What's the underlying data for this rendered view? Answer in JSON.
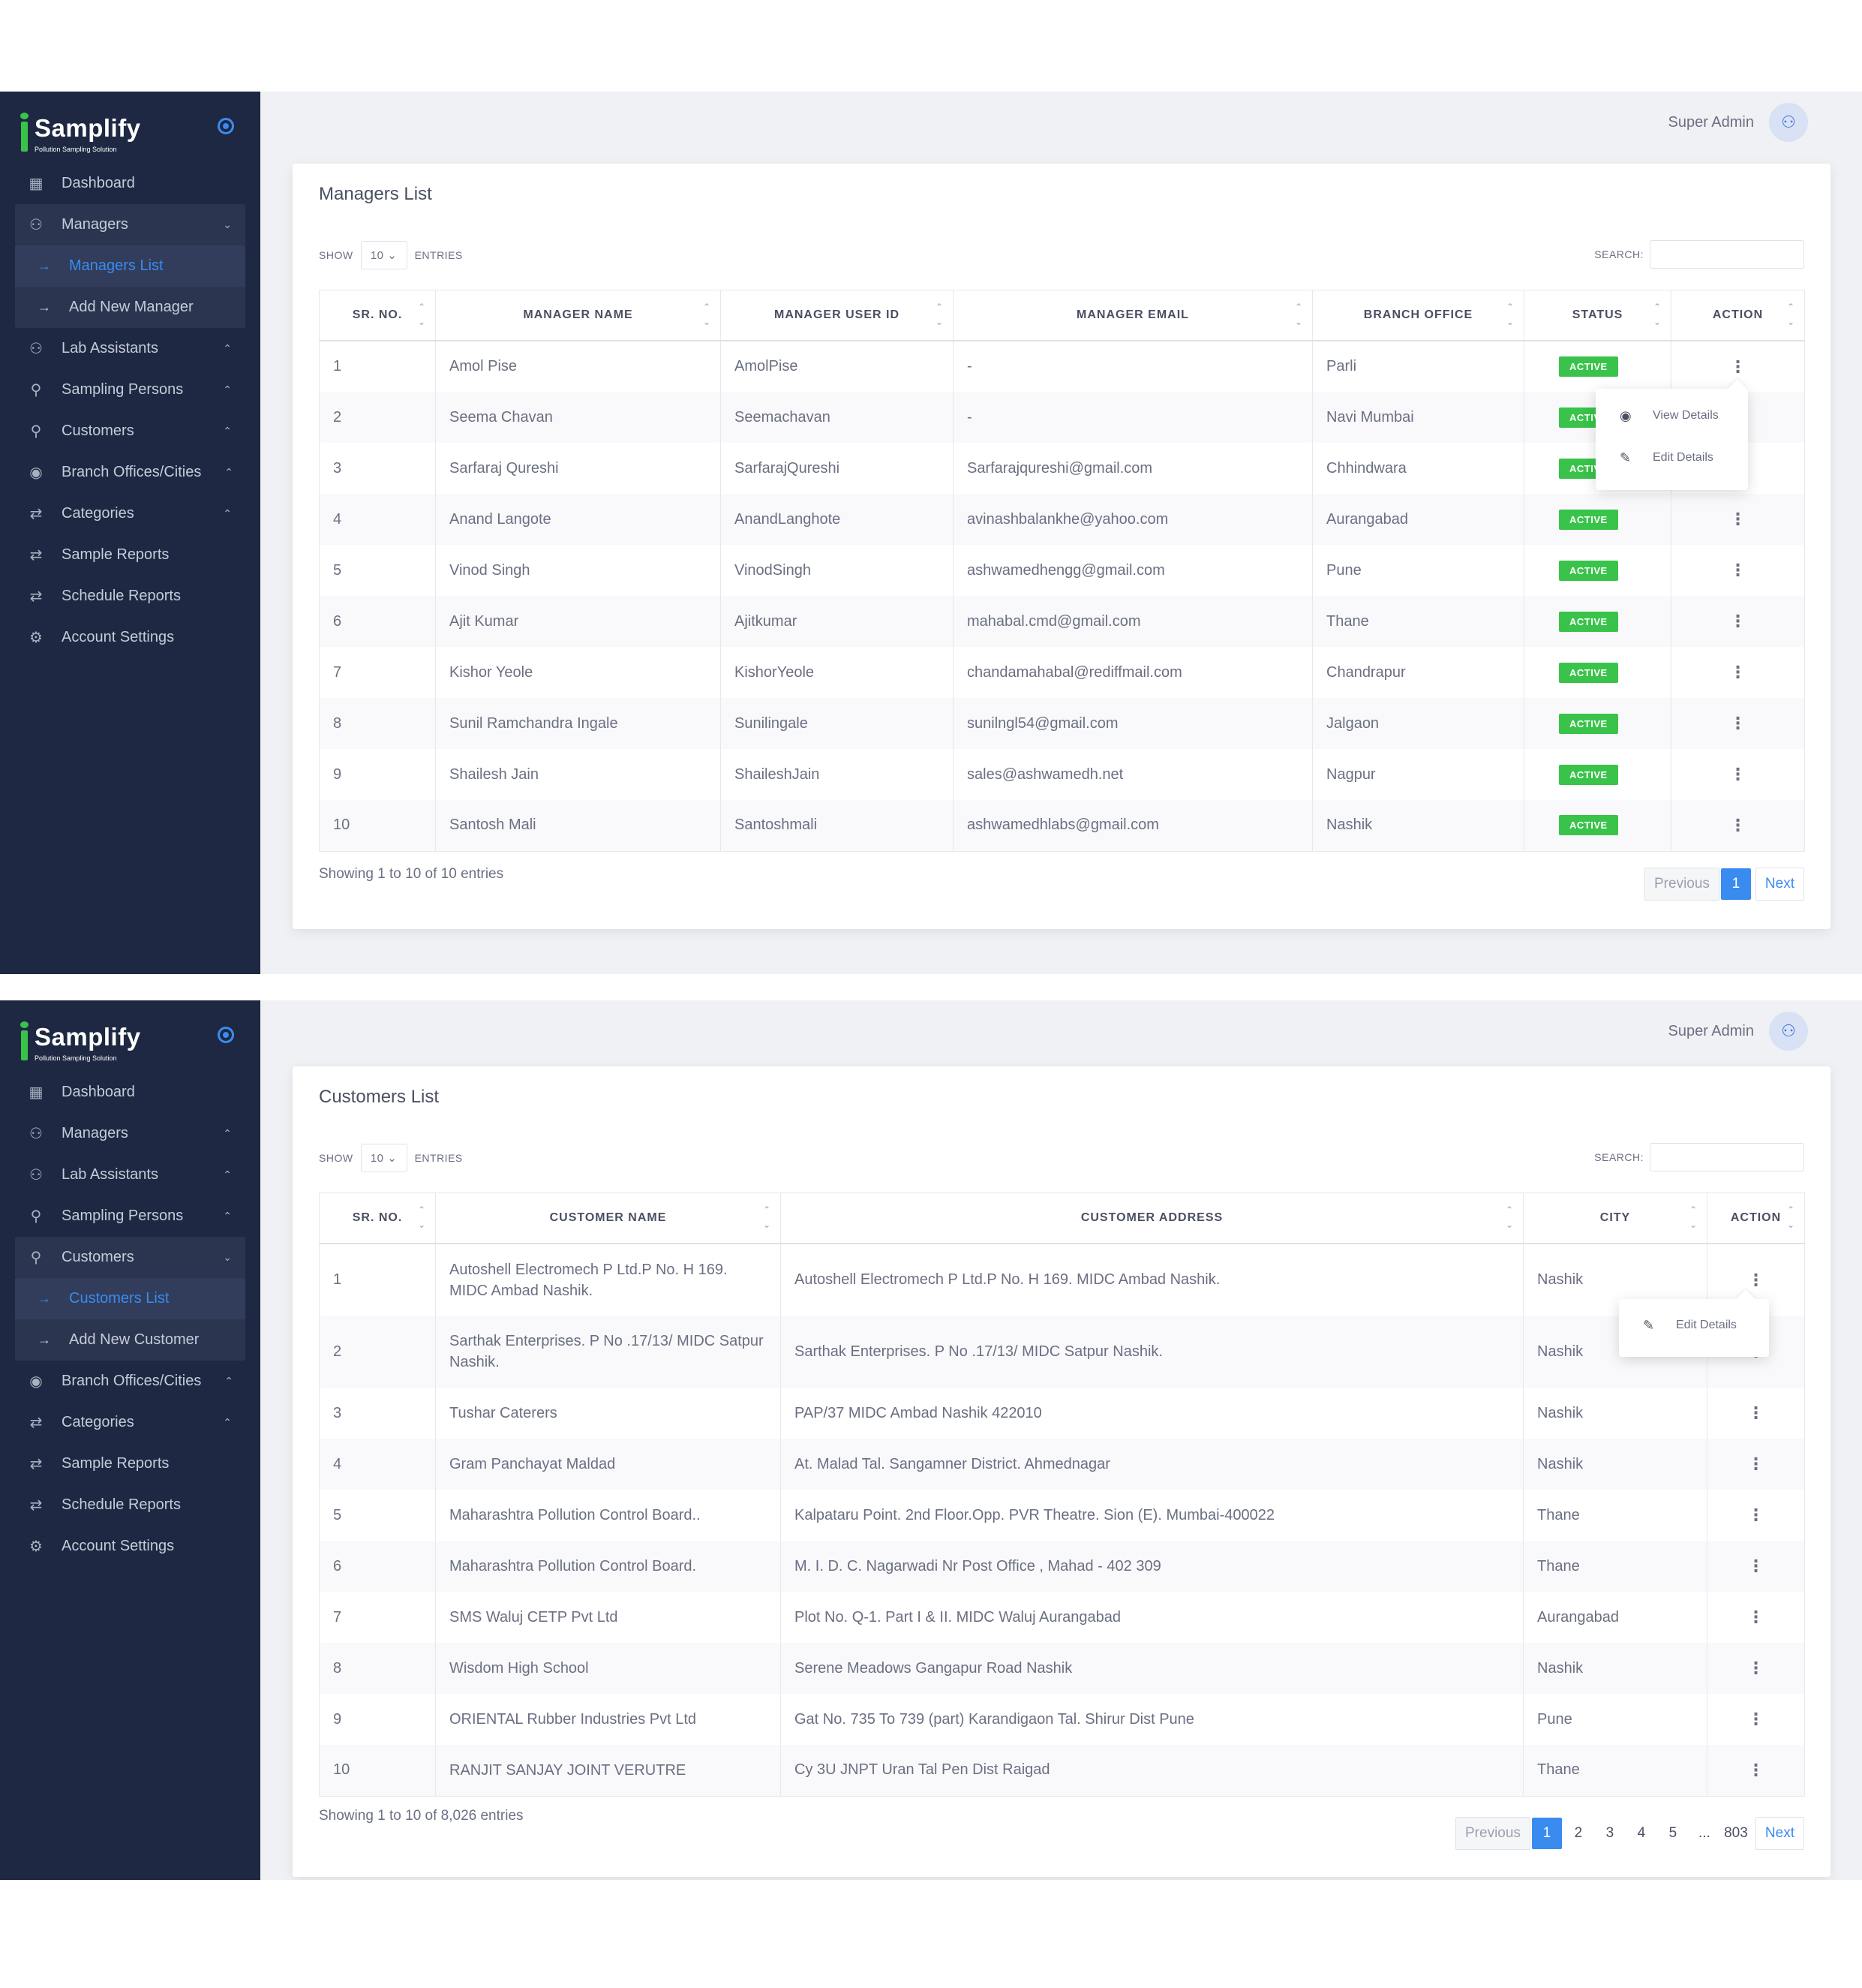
{
  "brand": {
    "name": "Samplify",
    "tagline": "Pollution Sampling Solution"
  },
  "user": {
    "name": "Super Admin"
  },
  "colors": {
    "sidebar": "#1e2842",
    "accent": "#3a8bf0",
    "active_badge": "#39c34a"
  },
  "sidebar": {
    "dashboard": "Dashboard",
    "managers": "Managers",
    "managers_list": "Managers List",
    "add_new_manager": "Add New Manager",
    "lab_assistants": "Lab Assistants",
    "sampling_persons": "Sampling Persons",
    "customers": "Customers",
    "customers_list": "Customers List",
    "add_new_customer": "Add New Customer",
    "branch_offices": "Branch Offices/Cities",
    "categories": "Categories",
    "sample_reports": "Sample Reports",
    "schedule_reports": "Schedule Reports",
    "account_settings": "Account Settings"
  },
  "controls": {
    "show": "SHOW",
    "entries_value": "10",
    "entries": "ENTRIES",
    "search": "SEARCH:"
  },
  "managers_page": {
    "title": "Managers List",
    "columns": [
      "SR. NO.",
      "MANAGER NAME",
      "MANAGER USER ID",
      "MANAGER EMAIL",
      "BRANCH OFFICE",
      "STATUS",
      "ACTION"
    ],
    "rows": [
      {
        "sr": "1",
        "name": "Amol Pise",
        "user_id": "AmolPise",
        "email": "-",
        "branch": "Parli",
        "status": "ACTIVE"
      },
      {
        "sr": "2",
        "name": "Seema Chavan",
        "user_id": "Seemachavan",
        "email": "-",
        "branch": "Navi Mumbai",
        "status": "ACTIVE"
      },
      {
        "sr": "3",
        "name": "Sarfaraj Qureshi",
        "user_id": "SarfarajQureshi",
        "email": "Sarfarajqureshi@gmail.com",
        "branch": "Chhindwara",
        "status": "ACTIVE"
      },
      {
        "sr": "4",
        "name": "Anand Langote",
        "user_id": "AnandLanghote",
        "email": "avinashbalankhe@yahoo.com",
        "branch": "Aurangabad",
        "status": "ACTIVE"
      },
      {
        "sr": "5",
        "name": "Vinod Singh",
        "user_id": "VinodSingh",
        "email": "ashwamedhengg@gmail.com",
        "branch": "Pune",
        "status": "ACTIVE"
      },
      {
        "sr": "6",
        "name": "Ajit Kumar",
        "user_id": "Ajitkumar",
        "email": "mahabal.cmd@gmail.com",
        "branch": "Thane",
        "status": "ACTIVE"
      },
      {
        "sr": "7",
        "name": "Kishor Yeole",
        "user_id": "KishorYeole",
        "email": "chandamahabal@rediffmail.com",
        "branch": "Chandrapur",
        "status": "ACTIVE"
      },
      {
        "sr": "8",
        "name": "Sunil Ramchandra Ingale",
        "user_id": "Sunilingale",
        "email": "sunilngl54@gmail.com",
        "branch": "Jalgaon",
        "status": "ACTIVE"
      },
      {
        "sr": "9",
        "name": "Shailesh Jain",
        "user_id": "ShaileshJain",
        "email": "sales@ashwamedh.net",
        "branch": "Nagpur",
        "status": "ACTIVE"
      },
      {
        "sr": "10",
        "name": "Santosh Mali",
        "user_id": "Santoshmali",
        "email": "ashwamedhlabs@gmail.com",
        "branch": "Nashik",
        "status": "ACTIVE"
      }
    ],
    "dropdown": {
      "view": "View Details",
      "edit": "Edit Details"
    },
    "info": "Showing 1 to 10 of 10 entries",
    "pager": {
      "previous": "Previous",
      "pages": [
        "1"
      ],
      "next": "Next"
    }
  },
  "customers_page": {
    "title": "Customers List",
    "columns": [
      "SR. NO.",
      "CUSTOMER NAME",
      "CUSTOMER ADDRESS",
      "CITY",
      "ACTION"
    ],
    "rows": [
      {
        "sr": "1",
        "name": "Autoshell Electromech P Ltd.P No. H 169. MIDC Ambad Nashik.",
        "address": "Autoshell Electromech P Ltd.P No. H 169. MIDC Ambad Nashik.",
        "city": "Nashik"
      },
      {
        "sr": "2",
        "name": "Sarthak Enterprises. P No .17/13/ MIDC Satpur Nashik.",
        "address": "Sarthak Enterprises. P No .17/13/ MIDC Satpur Nashik.",
        "city": "Nashik"
      },
      {
        "sr": "3",
        "name": "Tushar Caterers",
        "address": "PAP/37 MIDC Ambad Nashik 422010",
        "city": "Nashik"
      },
      {
        "sr": "4",
        "name": "Gram Panchayat Maldad",
        "address": "At. Malad Tal. Sangamner District. Ahmednagar",
        "city": "Nashik"
      },
      {
        "sr": "5",
        "name": "Maharashtra Pollution Control Board..",
        "address": "Kalpataru Point. 2nd Floor.Opp. PVR Theatre. Sion (E). Mumbai-400022",
        "city": "Thane"
      },
      {
        "sr": "6",
        "name": "Maharashtra Pollution Control Board.",
        "address": "M. I. D. C. Nagarwadi Nr Post Office , Mahad - 402 309",
        "city": "Thane"
      },
      {
        "sr": "7",
        "name": "SMS Waluj CETP Pvt Ltd",
        "address": "Plot No. Q-1. Part I & II. MIDC Waluj Aurangabad",
        "city": "Aurangabad"
      },
      {
        "sr": "8",
        "name": "Wisdom High School",
        "address": "Serene Meadows Gangapur Road Nashik",
        "city": "Nashik"
      },
      {
        "sr": "9",
        "name": "ORIENTAL Rubber Industries Pvt Ltd",
        "address": "Gat No. 735 To 739 (part) Karandigaon Tal. Shirur Dist Pune",
        "city": "Pune"
      },
      {
        "sr": "10",
        "name": "RANJIT SANJAY JOINT VERUTRE",
        "address": "Cy 3U JNPT Uran Tal Pen Dist Raigad",
        "city": "Thane"
      }
    ],
    "dropdown": {
      "edit": "Edit Details"
    },
    "info": "Showing 1 to 10 of 8,026 entries",
    "pager": {
      "previous": "Previous",
      "pages": [
        "1",
        "2",
        "3",
        "4",
        "5",
        "...",
        "803"
      ],
      "next": "Next"
    }
  }
}
